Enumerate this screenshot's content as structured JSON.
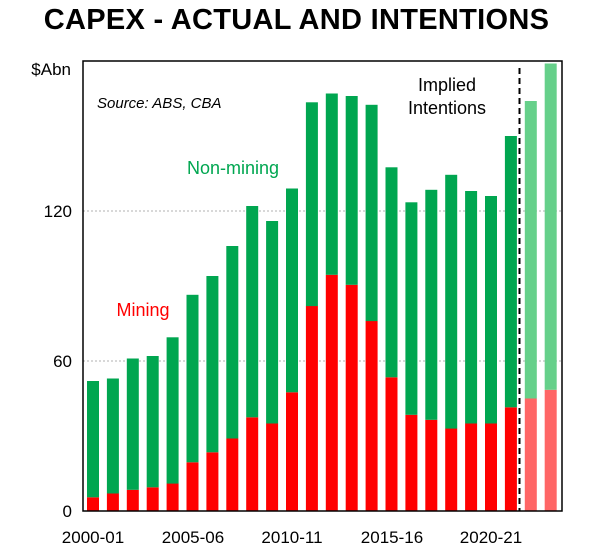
{
  "chart_data": {
    "type": "bar",
    "title": "CAPEX - ACTUAL AND INTENTIONS",
    "ylabel": "$Abn",
    "xlabel": "",
    "ylim": [
      0,
      180
    ],
    "yticks": [
      0,
      60,
      120
    ],
    "ytick_labels": [
      "0",
      "60",
      "120"
    ],
    "grid": true,
    "categories": [
      "2000-01",
      "2001-02",
      "2002-03",
      "2003-04",
      "2004-05",
      "2005-06",
      "2006-07",
      "2007-08",
      "2008-09",
      "2009-10",
      "2010-11",
      "2011-12",
      "2012-13",
      "2013-14",
      "2014-15",
      "2015-16",
      "2016-17",
      "2017-18",
      "2018-19",
      "2019-20",
      "2020-21",
      "2021-22",
      "2022-23",
      "2023-24"
    ],
    "xtick_labels": [
      "2000-01",
      "2005-06",
      "2010-11",
      "2015-16",
      "2020-21"
    ],
    "stacked": true,
    "series": [
      {
        "name": "Mining",
        "color": "#ff0000",
        "projected_color": "#ff6666",
        "values": [
          5.5,
          7,
          8.5,
          9.5,
          11,
          19.5,
          23.5,
          29,
          37.5,
          35,
          47.5,
          82,
          94.5,
          90.5,
          76,
          53.5,
          38.5,
          36.5,
          33,
          35,
          35,
          41.5,
          45,
          48.5
        ]
      },
      {
        "name": "Non-mining",
        "color": "#00a650",
        "projected_color": "#66d08a",
        "values": [
          46.5,
          46,
          52.5,
          52.5,
          58.5,
          67,
          70.5,
          77,
          84.5,
          81,
          81.5,
          81.5,
          72.5,
          75.5,
          86.5,
          84,
          85,
          92,
          101.5,
          93,
          91,
          108.5,
          119,
          130.5
        ]
      }
    ],
    "projected_from_index": 22,
    "annotations": {
      "source": "Source: ABS, CBA",
      "non_mining_label": "Non-mining",
      "mining_label": "Mining",
      "implied_line1": "Implied",
      "implied_line2": "Intentions"
    }
  }
}
